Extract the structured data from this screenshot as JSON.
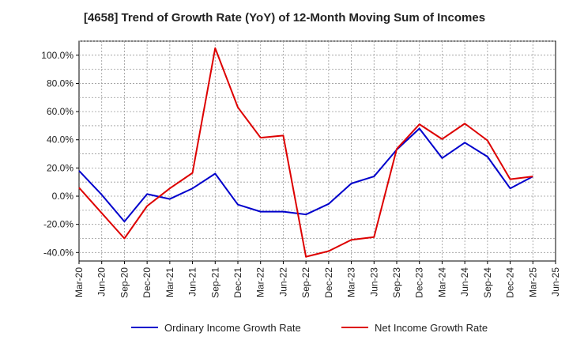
{
  "chart_data": {
    "type": "line",
    "title": "[4658]  Trend of Growth Rate (YoY) of 12-Month Moving Sum of Incomes",
    "xlabel": "",
    "ylabel": "",
    "x": [
      "Mar-20",
      "Jun-20",
      "Sep-20",
      "Dec-20",
      "Mar-21",
      "Jun-21",
      "Sep-21",
      "Dec-21",
      "Mar-22",
      "Jun-22",
      "Sep-22",
      "Dec-22",
      "Mar-23",
      "Jun-23",
      "Sep-23",
      "Dec-23",
      "Mar-24",
      "Jun-24",
      "Sep-24",
      "Dec-24",
      "Mar-25",
      "Jun-25"
    ],
    "ylim": [
      -46,
      110
    ],
    "yticks": [
      -40,
      -20,
      0,
      20,
      40,
      60,
      80,
      100
    ],
    "ytick_labels": [
      "-40.0%",
      "-20.0%",
      "0.0%",
      "20.0%",
      "40.0%",
      "60.0%",
      "80.0%",
      "100.0%"
    ],
    "grid": true,
    "legend_position": "bottom",
    "series": [
      {
        "name": "Ordinary Income Growth Rate",
        "color": "#0000cc",
        "values": [
          18,
          1,
          -18,
          1.5,
          -2,
          5.5,
          16,
          -6,
          -11,
          -11,
          -13,
          -5.5,
          9,
          14,
          33,
          48,
          27,
          38,
          28,
          5.5,
          14,
          null
        ]
      },
      {
        "name": "Net Income Growth Rate",
        "color": "#dd0000",
        "values": [
          6,
          -12,
          -30,
          -7,
          5.5,
          16.5,
          105,
          63,
          41.5,
          43,
          -43,
          -39,
          -31,
          -29,
          33.5,
          51,
          40.5,
          51.5,
          39.5,
          12,
          14,
          null
        ]
      }
    ]
  }
}
